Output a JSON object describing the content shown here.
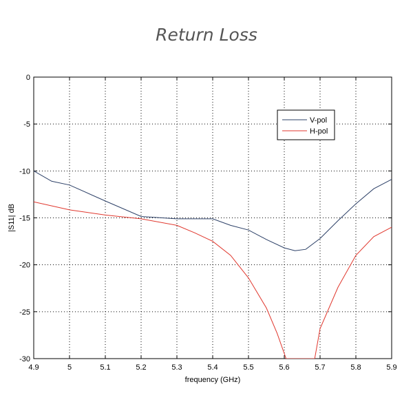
{
  "chart_data": {
    "type": "line",
    "title": "Return Loss",
    "xlabel": "frequency (GHz)",
    "ylabel": "|S11| dB",
    "xlim": [
      4.9,
      5.9
    ],
    "ylim": [
      -30,
      0
    ],
    "xticks": [
      "4.9",
      "5",
      "5.1",
      "5.2",
      "5.3",
      "5.4",
      "5.5",
      "5.6",
      "5.7",
      "5.8",
      "5.9"
    ],
    "yticks": [
      "0",
      "-5",
      "-10",
      "-15",
      "-20",
      "-25",
      "-30"
    ],
    "grid": true,
    "legend_position": "top-right",
    "series": [
      {
        "name": "V-pol",
        "color": "#2b3f66",
        "x": [
          4.9,
          4.95,
          5.0,
          5.1,
          5.2,
          5.3,
          5.4,
          5.45,
          5.5,
          5.55,
          5.6,
          5.63,
          5.66,
          5.7,
          5.75,
          5.8,
          5.85,
          5.9
        ],
        "y": [
          -10,
          -11.1,
          -11.5,
          -13.2,
          -14.85,
          -15.1,
          -15.1,
          -15.8,
          -16.3,
          -17.3,
          -18.2,
          -18.5,
          -18.35,
          -17.2,
          -15.3,
          -13.5,
          -11.9,
          -10.9
        ]
      },
      {
        "name": "H-pol",
        "color": "#e0362c",
        "x": [
          4.9,
          5.0,
          5.1,
          5.2,
          5.3,
          5.35,
          5.4,
          5.45,
          5.5,
          5.55,
          5.58,
          5.605,
          5.685,
          5.7,
          5.75,
          5.8,
          5.85,
          5.9
        ],
        "y": [
          -13.3,
          -14.15,
          -14.7,
          -15.1,
          -15.8,
          -16.6,
          -17.5,
          -19,
          -21.4,
          -24.6,
          -27.3,
          -30,
          -30,
          -26.8,
          -22.4,
          -19,
          -17,
          -16.0
        ]
      }
    ]
  }
}
